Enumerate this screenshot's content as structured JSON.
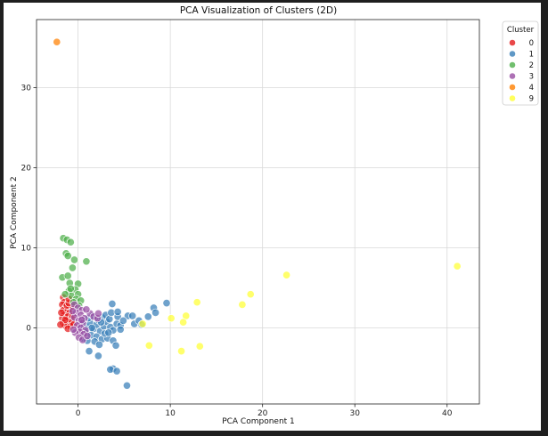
{
  "chart_data": {
    "type": "scatter",
    "title": "PCA Visualization of Clusters (2D)",
    "xlabel": "PCA Component 1",
    "ylabel": "PCA Component 2",
    "xlim": [
      -4.5,
      43.5
    ],
    "ylim": [
      -9.5,
      38.5
    ],
    "xticks": [
      0,
      10,
      20,
      30,
      40
    ],
    "yticks": [
      0,
      10,
      20,
      30
    ],
    "grid": true,
    "legend": {
      "title": "Cluster",
      "placement": "outside-top-right",
      "entries": [
        {
          "label": "0",
          "color": "#e41a1c"
        },
        {
          "label": "1",
          "color": "#377eb8"
        },
        {
          "label": "2",
          "color": "#4daf4a"
        },
        {
          "label": "3",
          "color": "#984ea3"
        },
        {
          "label": "4",
          "color": "#ff7f00"
        },
        {
          "label": "9",
          "color": "#ffff33"
        }
      ]
    },
    "series": [
      {
        "name": "0",
        "color": "#e41a1c",
        "points": [
          [
            -1.6,
            3.8
          ],
          [
            -1.5,
            3.2
          ],
          [
            -1.7,
            2.9
          ],
          [
            -1.3,
            2.6
          ],
          [
            -1.0,
            2.4
          ],
          [
            -1.6,
            2.2
          ],
          [
            -1.2,
            2.0
          ],
          [
            -0.9,
            1.9
          ],
          [
            -1.5,
            1.6
          ],
          [
            -1.1,
            1.4
          ],
          [
            -1.7,
            1.2
          ],
          [
            -0.8,
            1.1
          ],
          [
            -1.3,
            0.9
          ],
          [
            -1.6,
            0.6
          ],
          [
            -1.0,
            0.5
          ],
          [
            -0.7,
            0.8
          ],
          [
            -1.4,
            0.3
          ],
          [
            -0.8,
            0.2
          ],
          [
            -1.2,
            2.8
          ],
          [
            -0.6,
            2.7
          ],
          [
            -1.0,
            3.1
          ],
          [
            -0.6,
            1.5
          ],
          [
            -1.8,
            1.9
          ],
          [
            -1.4,
            1.0
          ],
          [
            -1.0,
            3.6
          ],
          [
            -1.9,
            0.4
          ],
          [
            -0.5,
            0.4
          ],
          [
            -1.1,
            -0.1
          ]
        ]
      },
      {
        "name": "1",
        "color": "#377eb8",
        "points": [
          [
            0.5,
            0.4
          ],
          [
            0.9,
            0.1
          ],
          [
            1.3,
            0.6
          ],
          [
            1.7,
            -0.1
          ],
          [
            2.0,
            0.4
          ],
          [
            2.4,
            -0.4
          ],
          [
            2.8,
            0.2
          ],
          [
            3.1,
            0.8
          ],
          [
            3.5,
            0.1
          ],
          [
            3.8,
            -0.3
          ],
          [
            4.2,
            0.5
          ],
          [
            4.6,
            0.3
          ],
          [
            1.1,
            1.2
          ],
          [
            1.6,
            1.5
          ],
          [
            2.2,
            1.0
          ],
          [
            2.6,
            1.3
          ],
          [
            3.0,
            1.6
          ],
          [
            3.4,
            1.1
          ],
          [
            0.8,
            -0.6
          ],
          [
            1.4,
            -0.9
          ],
          [
            2.0,
            -1.1
          ],
          [
            2.6,
            -1.4
          ],
          [
            3.2,
            -1.3
          ],
          [
            1.8,
            -1.7
          ],
          [
            2.3,
            -2.1
          ],
          [
            1.2,
            -2.9
          ],
          [
            2.2,
            -3.5
          ],
          [
            3.8,
            -1.6
          ],
          [
            4.1,
            -2.2
          ],
          [
            0.5,
            -1.3
          ],
          [
            1.0,
            -1.6
          ],
          [
            3.6,
            1.9
          ],
          [
            4.3,
            1.4
          ],
          [
            3.7,
            3.0
          ],
          [
            4.3,
            2.0
          ],
          [
            5.4,
            1.5
          ],
          [
            5.9,
            1.5
          ],
          [
            6.1,
            0.5
          ],
          [
            6.6,
            0.9
          ],
          [
            6.9,
            0.4
          ],
          [
            7.6,
            1.4
          ],
          [
            8.2,
            2.5
          ],
          [
            8.4,
            1.9
          ],
          [
            9.6,
            3.1
          ],
          [
            3.8,
            -5.1
          ],
          [
            3.5,
            -5.2
          ],
          [
            4.2,
            -5.4
          ],
          [
            5.3,
            -7.2
          ],
          [
            0.6,
            0.9
          ],
          [
            2.9,
            -0.7
          ],
          [
            4.9,
            0.9
          ],
          [
            1.5,
            0.0
          ],
          [
            3.3,
            -0.6
          ],
          [
            2.5,
            0.7
          ],
          [
            4.6,
            -0.2
          ]
        ]
      },
      {
        "name": "2",
        "color": "#4daf4a",
        "points": [
          [
            -1.6,
            11.2
          ],
          [
            -1.2,
            11.0
          ],
          [
            -0.8,
            10.7
          ],
          [
            -1.3,
            9.3
          ],
          [
            -1.1,
            9.0
          ],
          [
            -0.4,
            8.5
          ],
          [
            0.9,
            8.3
          ],
          [
            -0.6,
            7.5
          ],
          [
            -1.7,
            6.3
          ],
          [
            -1.1,
            6.5
          ],
          [
            -0.9,
            5.6
          ],
          [
            0.0,
            5.5
          ],
          [
            -0.3,
            4.8
          ],
          [
            -1.0,
            4.6
          ],
          [
            -0.7,
            4.0
          ],
          [
            0.0,
            4.2
          ],
          [
            -0.2,
            3.6
          ],
          [
            0.3,
            3.4
          ],
          [
            -1.4,
            4.2
          ],
          [
            -0.5,
            3.2
          ],
          [
            0.1,
            2.8
          ],
          [
            -0.8,
            4.9
          ]
        ]
      },
      {
        "name": "3",
        "color": "#984ea3",
        "points": [
          [
            -0.4,
            2.9
          ],
          [
            0.0,
            2.5
          ],
          [
            0.4,
            2.2
          ],
          [
            -0.2,
            1.9
          ],
          [
            0.3,
            1.6
          ],
          [
            0.7,
            1.2
          ],
          [
            -0.4,
            1.3
          ],
          [
            0.1,
            0.9
          ],
          [
            0.5,
            0.6
          ],
          [
            -0.1,
            0.3
          ],
          [
            0.3,
            0.0
          ],
          [
            0.8,
            -0.3
          ],
          [
            0.2,
            -0.5
          ],
          [
            0.6,
            -0.8
          ],
          [
            -0.3,
            -0.6
          ],
          [
            0.1,
            -1.2
          ],
          [
            0.5,
            -1.5
          ],
          [
            1.0,
            -1.0
          ],
          [
            1.3,
            1.8
          ],
          [
            1.7,
            1.4
          ],
          [
            2.1,
            1.2
          ],
          [
            2.2,
            1.8
          ],
          [
            0.9,
            2.3
          ],
          [
            -0.6,
            2.1
          ],
          [
            0.4,
            1.0
          ],
          [
            -0.5,
            -0.2
          ]
        ]
      },
      {
        "name": "4",
        "color": "#ff7f00",
        "points": [
          [
            -2.3,
            35.7
          ]
        ]
      },
      {
        "name": "9",
        "color": "#ffff33",
        "points": [
          [
            41.1,
            7.7
          ],
          [
            22.6,
            6.6
          ],
          [
            18.7,
            4.2
          ],
          [
            17.8,
            2.9
          ],
          [
            12.9,
            3.2
          ],
          [
            11.7,
            1.5
          ],
          [
            11.4,
            0.7
          ],
          [
            10.1,
            1.2
          ],
          [
            7.0,
            0.5
          ],
          [
            7.7,
            -2.2
          ],
          [
            11.2,
            -2.9
          ],
          [
            13.2,
            -2.3
          ]
        ]
      }
    ]
  }
}
